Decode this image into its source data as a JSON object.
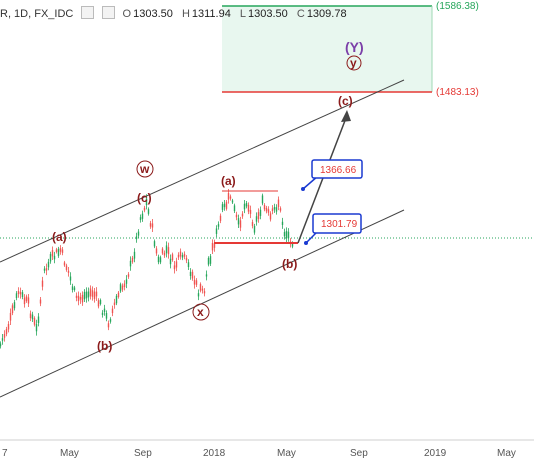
{
  "header": {
    "symbol": "R, 1D, FX_IDC",
    "o_label": "O",
    "o_value": "1303.50",
    "h_label": "H",
    "h_value": "1311.94",
    "l_label": "L",
    "l_value": "1303.50",
    "c_label": "C",
    "c_value": "1309.78"
  },
  "chart_data": {
    "type": "line",
    "x_ticks": [
      "7",
      "May",
      "Sep",
      "2018",
      "May",
      "Sep",
      "2019",
      "May"
    ],
    "price_levels": [
      {
        "value": 1586.38,
        "label": "(1586.38)",
        "color": "#26a65b"
      },
      {
        "value": 1483.13,
        "label": "(1483.13)",
        "color": "#e53935"
      }
    ],
    "callouts": [
      {
        "label": "1366.66",
        "color": "#e53935"
      },
      {
        "label": "1301.79",
        "color": "#e53935"
      }
    ],
    "wave_labels": [
      "(a)",
      "(c)",
      "w",
      "(a)",
      "(b)",
      "(c)",
      "x",
      "(b)",
      "(Y)",
      "y"
    ],
    "colors": {
      "candle_up": "#26a65b",
      "candle_down": "#ef5350",
      "channel": "#444444",
      "target_zone": "#e8f7ef",
      "wave": "#8b1a1a",
      "primary_wave": "#7b3fa8"
    }
  }
}
